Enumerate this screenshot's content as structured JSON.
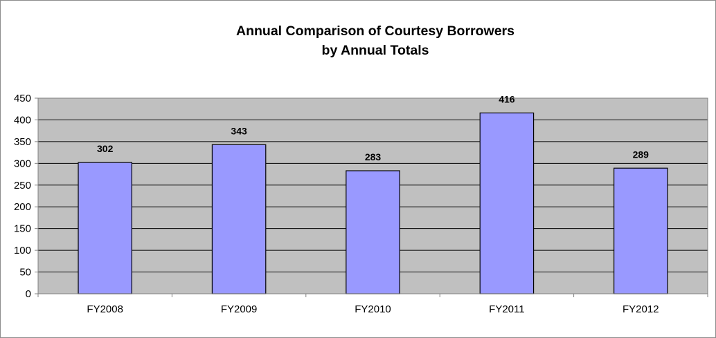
{
  "chart_data": {
    "type": "bar",
    "title_lines": [
      "Annual Comparison of Courtesy Borrowers",
      "by Annual Totals"
    ],
    "categories": [
      "FY2008",
      "FY2009",
      "FY2010",
      "FY2011",
      "FY2012"
    ],
    "values": [
      302,
      343,
      283,
      416,
      289
    ],
    "data_labels": [
      "302",
      "343",
      "283",
      "416",
      "289"
    ],
    "xlabel": "",
    "ylabel": "",
    "ylim": [
      0,
      450
    ],
    "yticks": [
      0,
      50,
      100,
      150,
      200,
      250,
      300,
      350,
      400,
      450
    ],
    "grid": true,
    "legend": "none",
    "colors": {
      "bar_fill": "#9999ff",
      "bar_stroke": "#000000",
      "plot_bg": "#c0c0c0",
      "grid": "#000000",
      "axis": "#808080"
    }
  }
}
